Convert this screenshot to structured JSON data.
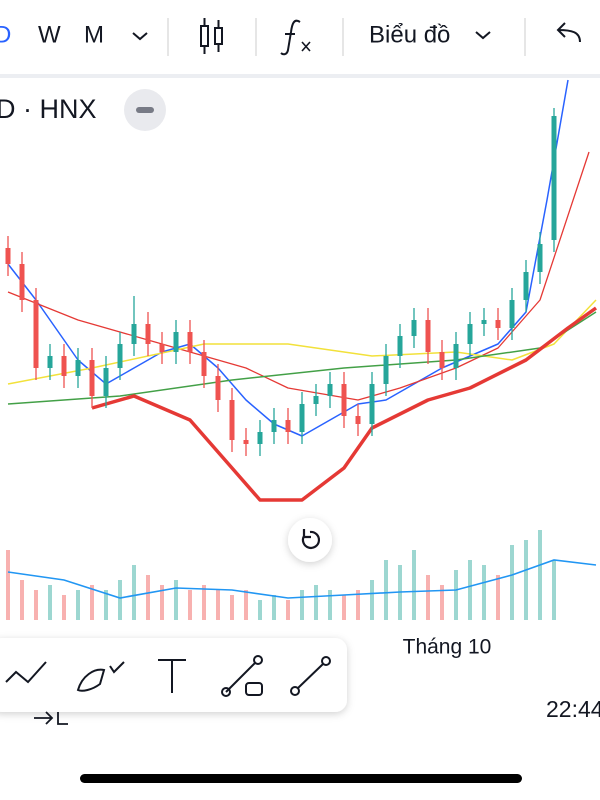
{
  "ui": {
    "tabs": [
      "D",
      "W",
      "M"
    ],
    "chart_menu": "Biểu đồ",
    "symbol": "D · HNX",
    "x_axis_label": "Tháng 10",
    "time": "22:44"
  },
  "chart_data": {
    "type": "candlestick",
    "up_color": "#26a69a",
    "down_color": "#ef5350",
    "ylim": [
      -10,
      100
    ],
    "open": [
      58,
      54,
      45,
      28,
      31,
      26,
      30,
      21,
      28,
      34,
      39,
      34,
      32,
      37,
      32,
      26,
      20,
      10,
      9,
      12,
      15,
      12,
      19,
      21,
      24,
      16,
      14,
      24,
      31,
      36,
      40,
      32,
      28,
      34,
      39,
      40,
      38,
      45,
      52,
      60
    ],
    "close": [
      54,
      45,
      28,
      31,
      26,
      30,
      21,
      28,
      34,
      39,
      34,
      32,
      37,
      32,
      26,
      20,
      10,
      9,
      12,
      15,
      12,
      19,
      21,
      24,
      16,
      14,
      24,
      31,
      36,
      40,
      32,
      28,
      34,
      39,
      40,
      38,
      45,
      52,
      59,
      91
    ],
    "high": [
      61,
      57,
      48,
      34,
      34,
      33,
      33,
      31,
      37,
      46,
      42,
      37,
      40,
      40,
      35,
      29,
      23,
      13,
      15,
      18,
      18,
      22,
      24,
      27,
      27,
      19,
      27,
      34,
      39,
      43,
      43,
      35,
      37,
      42,
      43,
      43,
      48,
      55,
      62,
      93
    ],
    "low": [
      51,
      42,
      25,
      25,
      23,
      23,
      18,
      18,
      25,
      31,
      31,
      29,
      29,
      29,
      23,
      17,
      7,
      6,
      6,
      9,
      9,
      9,
      16,
      18,
      13,
      11,
      11,
      21,
      28,
      33,
      29,
      25,
      25,
      31,
      36,
      35,
      35,
      42,
      49,
      57
    ],
    "lines": [
      {
        "color": "#2962ff",
        "width": 1.5,
        "x": [
          0,
          2,
          5,
          7,
          9,
          11,
          13,
          15,
          17,
          19,
          21,
          23,
          25,
          27,
          29,
          31,
          33,
          35,
          37,
          38.5,
          40
        ],
        "values": [
          54,
          45,
          30,
          24,
          28,
          32,
          34,
          28,
          20,
          14,
          11,
          15,
          19,
          20,
          24,
          28,
          31,
          34,
          42,
          70,
          100
        ]
      },
      {
        "color": "#e53935",
        "width": 1.3,
        "x": [
          0,
          5,
          10,
          17,
          20,
          25,
          28,
          32,
          35,
          38,
          41.5
        ],
        "values": [
          47,
          40,
          35,
          28,
          23,
          20,
          23,
          28,
          33,
          45,
          82
        ]
      },
      {
        "color": "#f2e13a",
        "width": 1.5,
        "x": [
          0,
          6,
          14,
          20,
          26,
          32,
          36,
          39,
          42
        ],
        "values": [
          24,
          28,
          34,
          34,
          31,
          32,
          30,
          34,
          45
        ]
      },
      {
        "color": "#43a047",
        "width": 1.5,
        "x": [
          0,
          8,
          16,
          24,
          32,
          38,
          42
        ],
        "values": [
          19,
          21,
          25,
          28,
          30,
          33,
          42
        ]
      },
      {
        "color": "#e53935",
        "width": 3.5,
        "x": [
          6,
          9,
          13,
          16,
          18,
          21,
          24,
          26,
          30,
          33,
          37,
          40,
          42
        ],
        "values": [
          18,
          21,
          15,
          3,
          -5,
          -5,
          3,
          13,
          20,
          23,
          30,
          38,
          43
        ]
      }
    ],
    "volume": {
      "ylim": [
        0,
        100
      ],
      "values": [
        70,
        40,
        30,
        35,
        25,
        30,
        35,
        30,
        40,
        55,
        45,
        35,
        40,
        30,
        35,
        30,
        25,
        30,
        20,
        25,
        20,
        30,
        35,
        30,
        25,
        30,
        40,
        60,
        55,
        70,
        45,
        35,
        50,
        60,
        55,
        45,
        75,
        80,
        90,
        60
      ]
    },
    "volume_ma": {
      "color": "#2196f3",
      "x": [
        0,
        4,
        8,
        12,
        16,
        20,
        24,
        28,
        32,
        36,
        39,
        42
      ],
      "values": [
        48,
        40,
        22,
        32,
        30,
        22,
        25,
        28,
        30,
        45,
        60,
        55
      ]
    }
  }
}
